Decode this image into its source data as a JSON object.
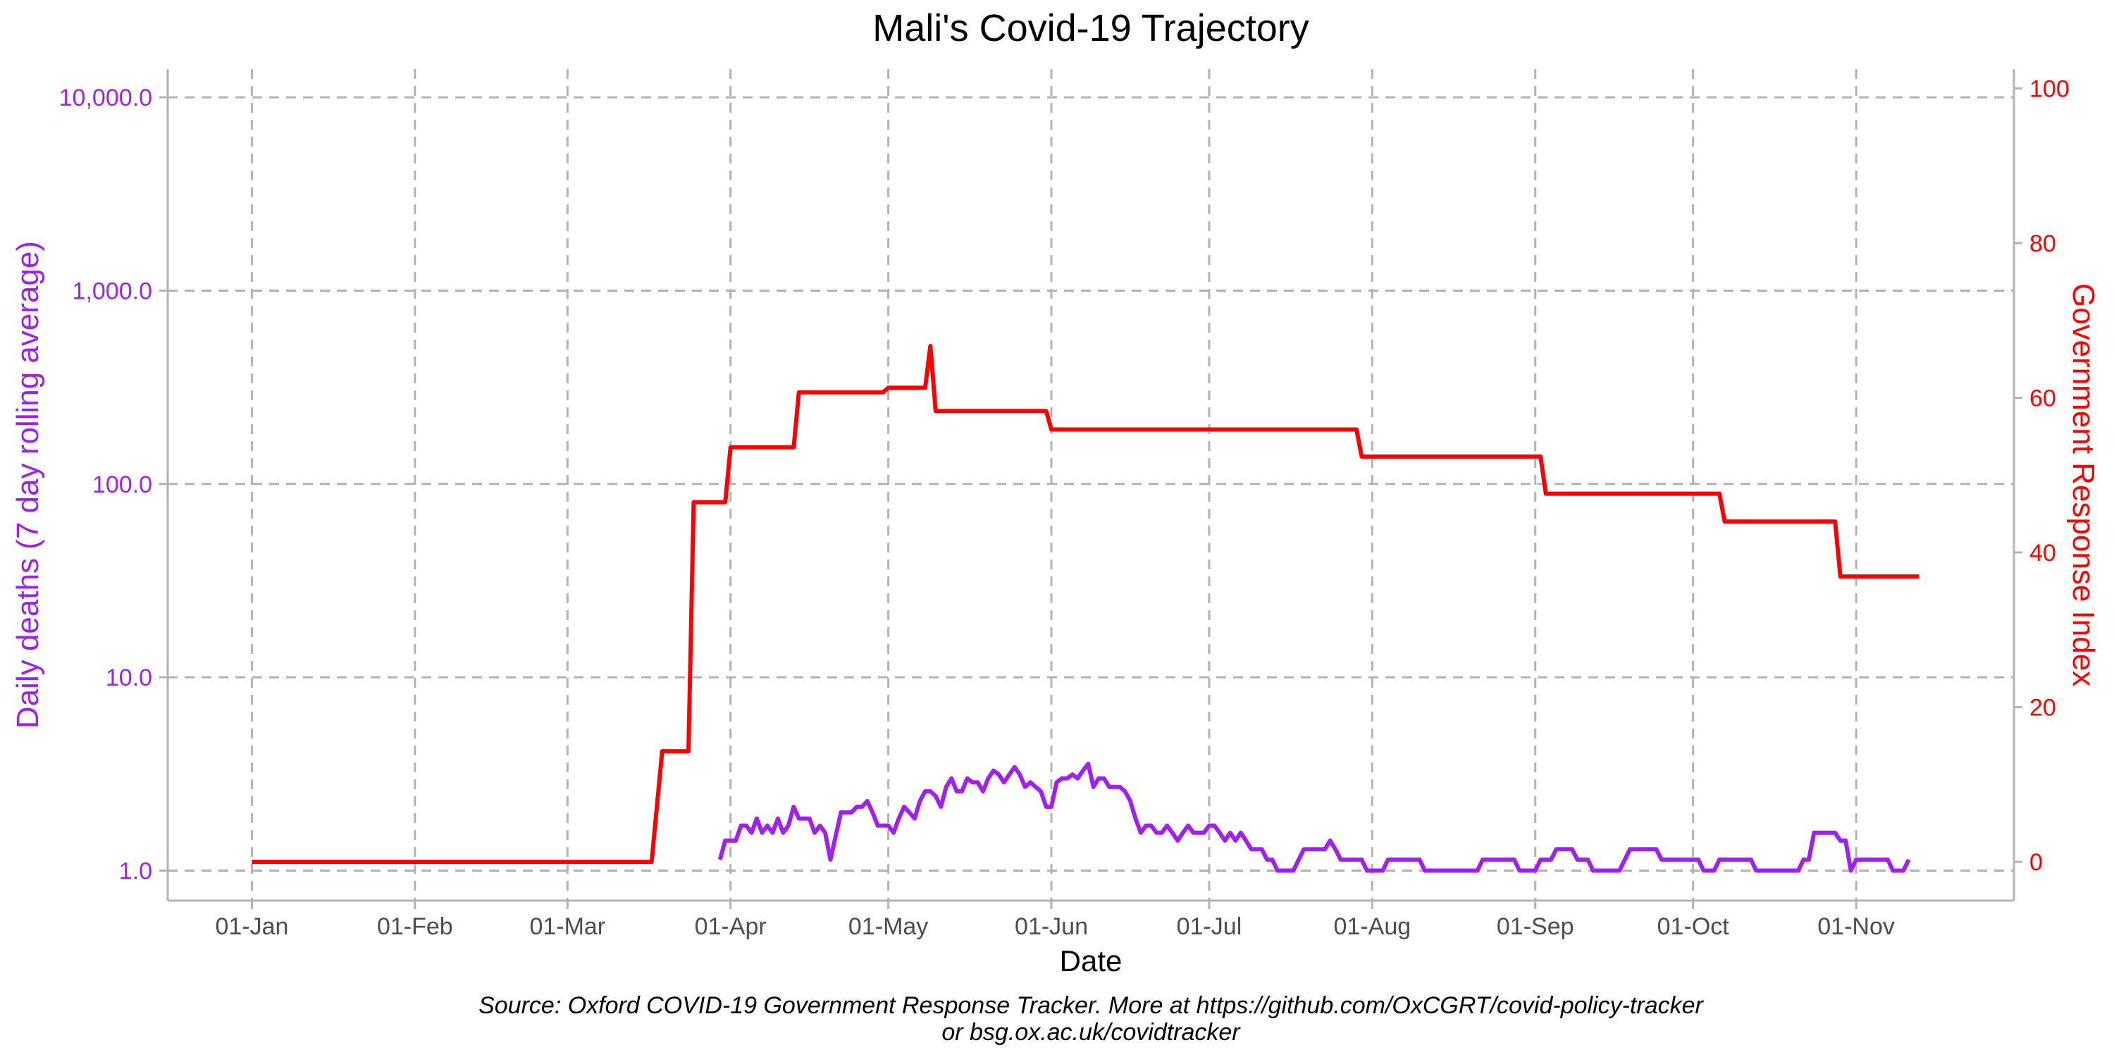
{
  "chart_data": {
    "type": "line",
    "title": "Mali's Covid-19 Trajectory",
    "xlabel": "Date",
    "caption_line1": "Source: Oxford COVID-19 Government Response Tracker. More at https://github.com/OxCGRT/covid-policy-tracker",
    "caption_line2": "or bsg.ox.ac.uk/covidtracker",
    "x_ticks": [
      {
        "date": "2020-01-01",
        "label": "01-Jan"
      },
      {
        "date": "2020-02-01",
        "label": "01-Feb"
      },
      {
        "date": "2020-03-01",
        "label": "01-Mar"
      },
      {
        "date": "2020-04-01",
        "label": "01-Apr"
      },
      {
        "date": "2020-05-01",
        "label": "01-May"
      },
      {
        "date": "2020-06-01",
        "label": "01-Jun"
      },
      {
        "date": "2020-07-01",
        "label": "01-Jul"
      },
      {
        "date": "2020-08-01",
        "label": "01-Aug"
      },
      {
        "date": "2020-09-01",
        "label": "01-Sep"
      },
      {
        "date": "2020-10-01",
        "label": "01-Oct"
      },
      {
        "date": "2020-11-01",
        "label": "01-Nov"
      }
    ],
    "xlim": [
      "2019-12-16",
      "2020-12-01"
    ],
    "y_left": {
      "label": "Daily deaths (7 day rolling average)",
      "scale": "log10",
      "ylim": [
        0.7,
        14000
      ],
      "ticks": [
        {
          "value": 1,
          "label": "1.0"
        },
        {
          "value": 10,
          "label": "10.0"
        },
        {
          "value": 100,
          "label": "100.0"
        },
        {
          "value": 1000,
          "label": "1,000.0"
        },
        {
          "value": 10000,
          "label": "10,000.0"
        }
      ],
      "color": "#a020f0"
    },
    "y_right": {
      "label": "Government Response Index",
      "scale": "linear",
      "ylim": [
        -5,
        102.5
      ],
      "ticks": [
        {
          "value": 0,
          "label": "0"
        },
        {
          "value": 20,
          "label": "20"
        },
        {
          "value": 40,
          "label": "40"
        },
        {
          "value": 60,
          "label": "60"
        },
        {
          "value": 80,
          "label": "80"
        },
        {
          "value": 100,
          "label": "100"
        }
      ],
      "color": "#ff0000"
    },
    "grid": true,
    "series": [
      {
        "axis": "right",
        "color": "#ff0000",
        "points": [
          [
            "2020-01-01",
            0
          ],
          [
            "2020-03-17",
            0
          ],
          [
            "2020-03-19",
            14.3
          ],
          [
            "2020-03-24",
            14.3
          ],
          [
            "2020-03-25",
            46.5
          ],
          [
            "2020-03-31",
            46.5
          ],
          [
            "2020-04-01",
            53.6
          ],
          [
            "2020-04-13",
            53.6
          ],
          [
            "2020-04-14",
            60.7
          ],
          [
            "2020-04-30",
            60.7
          ],
          [
            "2020-05-01",
            61.3
          ],
          [
            "2020-05-08",
            61.3
          ],
          [
            "2020-05-09",
            66.7
          ],
          [
            "2020-05-10",
            58.3
          ],
          [
            "2020-05-31",
            58.3
          ],
          [
            "2020-06-01",
            55.9
          ],
          [
            "2020-07-29",
            55.9
          ],
          [
            "2020-07-30",
            52.4
          ],
          [
            "2020-09-02",
            52.4
          ],
          [
            "2020-09-03",
            47.6
          ],
          [
            "2020-10-06",
            47.6
          ],
          [
            "2020-10-07",
            44.0
          ],
          [
            "2020-10-28",
            44.0
          ],
          [
            "2020-10-29",
            36.9
          ],
          [
            "2020-11-13",
            36.9
          ]
        ]
      },
      {
        "axis": "left",
        "color": "#a020f0",
        "points": [
          [
            "2020-03-30",
            1.14
          ],
          [
            "2020-03-31",
            1.43
          ],
          [
            "2020-04-02",
            1.43
          ],
          [
            "2020-04-03",
            1.71
          ],
          [
            "2020-04-04",
            1.71
          ],
          [
            "2020-04-05",
            1.57
          ],
          [
            "2020-04-06",
            1.86
          ],
          [
            "2020-04-07",
            1.57
          ],
          [
            "2020-04-08",
            1.71
          ],
          [
            "2020-04-09",
            1.57
          ],
          [
            "2020-04-10",
            1.86
          ],
          [
            "2020-04-11",
            1.57
          ],
          [
            "2020-04-12",
            1.71
          ],
          [
            "2020-04-13",
            2.14
          ],
          [
            "2020-04-14",
            1.86
          ],
          [
            "2020-04-16",
            1.86
          ],
          [
            "2020-04-17",
            1.57
          ],
          [
            "2020-04-18",
            1.71
          ],
          [
            "2020-04-19",
            1.57
          ],
          [
            "2020-04-20",
            1.14
          ],
          [
            "2020-04-22",
            2.0
          ],
          [
            "2020-04-24",
            2.0
          ],
          [
            "2020-04-25",
            2.14
          ],
          [
            "2020-04-26",
            2.14
          ],
          [
            "2020-04-27",
            2.29
          ],
          [
            "2020-04-28",
            2.0
          ],
          [
            "2020-04-29",
            1.71
          ],
          [
            "2020-05-01",
            1.71
          ],
          [
            "2020-05-02",
            1.57
          ],
          [
            "2020-05-03",
            1.86
          ],
          [
            "2020-05-04",
            2.14
          ],
          [
            "2020-05-05",
            2.0
          ],
          [
            "2020-05-06",
            1.86
          ],
          [
            "2020-05-07",
            2.29
          ],
          [
            "2020-05-08",
            2.57
          ],
          [
            "2020-05-09",
            2.57
          ],
          [
            "2020-05-10",
            2.43
          ],
          [
            "2020-05-11",
            2.14
          ],
          [
            "2020-05-12",
            2.71
          ],
          [
            "2020-05-13",
            3.0
          ],
          [
            "2020-05-14",
            2.57
          ],
          [
            "2020-05-15",
            2.57
          ],
          [
            "2020-05-16",
            3.0
          ],
          [
            "2020-05-17",
            2.86
          ],
          [
            "2020-05-18",
            2.86
          ],
          [
            "2020-05-19",
            2.57
          ],
          [
            "2020-05-20",
            3.0
          ],
          [
            "2020-05-21",
            3.29
          ],
          [
            "2020-05-22",
            3.14
          ],
          [
            "2020-05-23",
            2.86
          ],
          [
            "2020-05-24",
            3.14
          ],
          [
            "2020-05-25",
            3.43
          ],
          [
            "2020-05-26",
            3.14
          ],
          [
            "2020-05-27",
            2.71
          ],
          [
            "2020-05-28",
            2.86
          ],
          [
            "2020-05-29",
            2.71
          ],
          [
            "2020-05-30",
            2.57
          ],
          [
            "2020-05-31",
            2.14
          ],
          [
            "2020-06-01",
            2.14
          ],
          [
            "2020-06-02",
            2.86
          ],
          [
            "2020-06-03",
            3.0
          ],
          [
            "2020-06-04",
            3.0
          ],
          [
            "2020-06-05",
            3.14
          ],
          [
            "2020-06-06",
            3.0
          ],
          [
            "2020-06-07",
            3.29
          ],
          [
            "2020-06-08",
            3.57
          ],
          [
            "2020-06-09",
            2.71
          ],
          [
            "2020-06-10",
            3.0
          ],
          [
            "2020-06-11",
            3.0
          ],
          [
            "2020-06-12",
            2.71
          ],
          [
            "2020-06-14",
            2.71
          ],
          [
            "2020-06-15",
            2.57
          ],
          [
            "2020-06-16",
            2.29
          ],
          [
            "2020-06-17",
            1.86
          ],
          [
            "2020-06-18",
            1.57
          ],
          [
            "2020-06-19",
            1.71
          ],
          [
            "2020-06-20",
            1.71
          ],
          [
            "2020-06-21",
            1.57
          ],
          [
            "2020-06-22",
            1.57
          ],
          [
            "2020-06-23",
            1.71
          ],
          [
            "2020-06-24",
            1.57
          ],
          [
            "2020-06-25",
            1.43
          ],
          [
            "2020-06-26",
            1.57
          ],
          [
            "2020-06-27",
            1.71
          ],
          [
            "2020-06-28",
            1.57
          ],
          [
            "2020-06-30",
            1.57
          ],
          [
            "2020-07-01",
            1.71
          ],
          [
            "2020-07-02",
            1.71
          ],
          [
            "2020-07-03",
            1.57
          ],
          [
            "2020-07-04",
            1.43
          ],
          [
            "2020-07-05",
            1.57
          ],
          [
            "2020-07-06",
            1.43
          ],
          [
            "2020-07-07",
            1.57
          ],
          [
            "2020-07-08",
            1.43
          ],
          [
            "2020-07-09",
            1.29
          ],
          [
            "2020-07-11",
            1.29
          ],
          [
            "2020-07-12",
            1.14
          ],
          [
            "2020-07-13",
            1.14
          ],
          [
            "2020-07-14",
            1.0
          ],
          [
            "2020-07-17",
            1.0
          ],
          [
            "2020-07-19",
            1.29
          ],
          [
            "2020-07-23",
            1.29
          ],
          [
            "2020-07-24",
            1.43
          ],
          [
            "2020-07-25",
            1.29
          ],
          [
            "2020-07-26",
            1.14
          ],
          [
            "2020-07-30",
            1.14
          ],
          [
            "2020-07-31",
            1.0
          ],
          [
            "2020-08-03",
            1.0
          ],
          [
            "2020-08-04",
            1.14
          ],
          [
            "2020-08-10",
            1.14
          ],
          [
            "2020-08-11",
            1.0
          ],
          [
            "2020-08-21",
            1.0
          ],
          [
            "2020-08-22",
            1.14
          ],
          [
            "2020-08-28",
            1.14
          ],
          [
            "2020-08-29",
            1.0
          ],
          [
            "2020-09-01",
            1.0
          ],
          [
            "2020-09-02",
            1.14
          ],
          [
            "2020-09-04",
            1.14
          ],
          [
            "2020-09-05",
            1.29
          ],
          [
            "2020-09-08",
            1.29
          ],
          [
            "2020-09-09",
            1.14
          ],
          [
            "2020-09-11",
            1.14
          ],
          [
            "2020-09-12",
            1.0
          ],
          [
            "2020-09-17",
            1.0
          ],
          [
            "2020-09-19",
            1.29
          ],
          [
            "2020-09-24",
            1.29
          ],
          [
            "2020-09-25",
            1.14
          ],
          [
            "2020-10-02",
            1.14
          ],
          [
            "2020-10-03",
            1.0
          ],
          [
            "2020-10-05",
            1.0
          ],
          [
            "2020-10-06",
            1.14
          ],
          [
            "2020-10-12",
            1.14
          ],
          [
            "2020-10-13",
            1.0
          ],
          [
            "2020-10-21",
            1.0
          ],
          [
            "2020-10-22",
            1.14
          ],
          [
            "2020-10-23",
            1.14
          ],
          [
            "2020-10-24",
            1.57
          ],
          [
            "2020-10-28",
            1.57
          ],
          [
            "2020-10-29",
            1.43
          ],
          [
            "2020-10-30",
            1.43
          ],
          [
            "2020-10-31",
            1.0
          ],
          [
            "2020-11-01",
            1.14
          ],
          [
            "2020-11-07",
            1.14
          ],
          [
            "2020-11-08",
            1.0
          ],
          [
            "2020-11-10",
            1.0
          ],
          [
            "2020-11-11",
            1.14
          ]
        ]
      }
    ]
  }
}
